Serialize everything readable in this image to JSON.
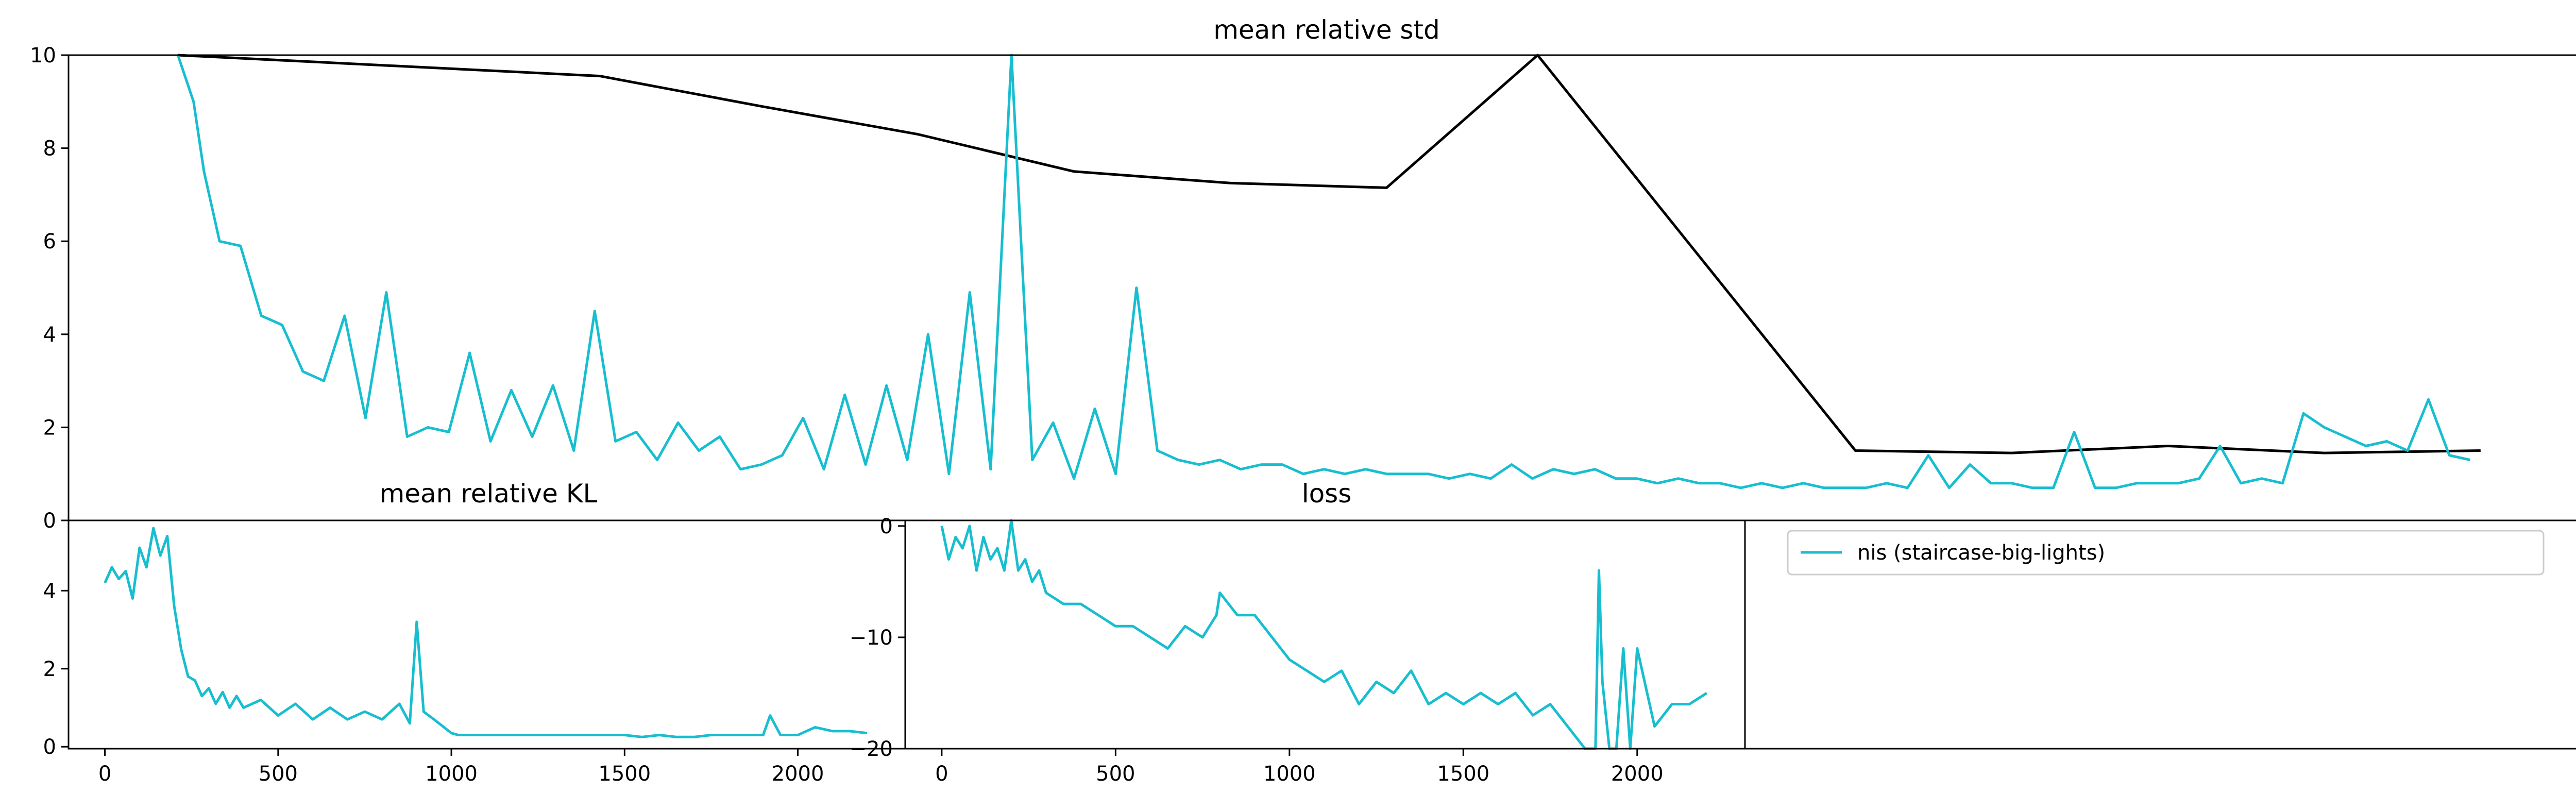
{
  "colors": {
    "nis": "#17becf",
    "reference": "#000000",
    "axes": "#000000",
    "background": "#ffffff"
  },
  "legend": {
    "placement": "bottom-right panel",
    "entries": [
      {
        "label": "nis (staircase-big-lights)",
        "color": "#17becf"
      }
    ]
  },
  "chart_data": [
    {
      "type": "line",
      "title": "mean relative std",
      "xlabel": "",
      "ylabel": "",
      "xlim": [
        -105,
        2310
      ],
      "ylim": [
        0,
        10
      ],
      "yticks": [
        0,
        2,
        4,
        6,
        8,
        10
      ],
      "ytick_labels": [
        "0",
        "2",
        "4",
        "6",
        "8",
        "10"
      ],
      "grid": false,
      "series": [
        {
          "legend_label": "nis (staircase-big-lights)",
          "color": "#17becf",
          "x": [
            0,
            15,
            25,
            40,
            60,
            80,
            100,
            120,
            140,
            160,
            180,
            200,
            220,
            240,
            260,
            280,
            300,
            320,
            340,
            360,
            380,
            400,
            420,
            440,
            460,
            480,
            500,
            520,
            540,
            560,
            580,
            600,
            620,
            640,
            660,
            680,
            700,
            720,
            740,
            760,
            780,
            800,
            820,
            840,
            860,
            880,
            900,
            920,
            940,
            960,
            980,
            1000,
            1020,
            1040,
            1060,
            1080,
            1100,
            1120,
            1140,
            1160,
            1180,
            1200,
            1220,
            1240,
            1260,
            1280,
            1300,
            1320,
            1340,
            1360,
            1380,
            1400,
            1420,
            1440,
            1460,
            1480,
            1500,
            1520,
            1540,
            1560,
            1580,
            1600,
            1620,
            1640,
            1660,
            1680,
            1700,
            1720,
            1740,
            1760,
            1780,
            1800,
            1820,
            1840,
            1860,
            1880,
            1900,
            1920,
            1940,
            1960,
            1980,
            2000,
            2020,
            2040,
            2060,
            2080,
            2100,
            2120,
            2140,
            2160,
            2180,
            2200
          ],
          "y": [
            10,
            9.0,
            7.5,
            6.0,
            5.9,
            4.4,
            4.2,
            3.2,
            3.0,
            4.4,
            2.2,
            4.9,
            1.8,
            2.0,
            1.9,
            3.6,
            1.7,
            2.8,
            1.8,
            2.9,
            1.5,
            4.5,
            1.7,
            1.9,
            1.3,
            2.1,
            1.5,
            1.8,
            1.1,
            1.2,
            1.4,
            2.2,
            1.1,
            2.7,
            1.2,
            2.9,
            1.3,
            4.0,
            1.0,
            4.9,
            1.1,
            10,
            1.3,
            2.1,
            0.9,
            2.4,
            1.0,
            5.0,
            1.5,
            1.3,
            1.2,
            1.3,
            1.1,
            1.2,
            1.2,
            1.0,
            1.1,
            1.0,
            1.1,
            1.0,
            1.0,
            1.0,
            0.9,
            1.0,
            0.9,
            1.2,
            0.9,
            1.1,
            1.0,
            1.1,
            0.9,
            0.9,
            0.8,
            0.9,
            0.8,
            0.8,
            0.7,
            0.8,
            0.7,
            0.8,
            0.7,
            0.7,
            0.7,
            0.8,
            0.7,
            1.4,
            0.7,
            1.2,
            0.8,
            0.8,
            0.7,
            0.7,
            1.9,
            0.7,
            0.7,
            0.8,
            0.8,
            0.8,
            0.9,
            1.6,
            0.8,
            0.9,
            0.8,
            2.3,
            2.0,
            1.8,
            1.6,
            1.7,
            1.5,
            2.6,
            1.4,
            1.3
          ]
        },
        {
          "color": "#000000",
          "step": true,
          "x": [
            0,
            405,
            405,
            560,
            560,
            710,
            710,
            860,
            860,
            1010,
            1010,
            1160,
            1160,
            1305,
            1305,
            1610,
            1610,
            1760,
            1760,
            1910,
            1910,
            2060,
            2060,
            2210
          ],
          "y": [
            10,
            9.55,
            9.55,
            8.9,
            8.9,
            8.3,
            8.3,
            7.5,
            7.5,
            7.25,
            7.25,
            7.15,
            7.15,
            10,
            10,
            1.5,
            1.5,
            1.45,
            1.45,
            1.6,
            1.6,
            1.45,
            1.45,
            1.5
          ]
        }
      ]
    },
    {
      "type": "line",
      "title": "mean relative KL",
      "xlabel": "",
      "ylabel": "",
      "xlim": [
        -105,
        2310
      ],
      "ylim": [
        -0.05,
        5.8
      ],
      "xticks": [
        0,
        500,
        1000,
        1500,
        2000
      ],
      "xtick_labels": [
        "0",
        "500",
        "1000",
        "1500",
        "2000"
      ],
      "yticks": [
        0,
        2,
        4
      ],
      "ytick_labels": [
        "0",
        "2",
        "4"
      ],
      "grid": false,
      "series": [
        {
          "legend_label": "nis (staircase-big-lights)",
          "color": "#17becf",
          "x": [
            0,
            20,
            40,
            60,
            80,
            100,
            120,
            140,
            160,
            180,
            200,
            220,
            240,
            260,
            280,
            300,
            320,
            340,
            360,
            380,
            400,
            450,
            500,
            550,
            600,
            650,
            700,
            750,
            800,
            850,
            880,
            900,
            920,
            950,
            1000,
            1020,
            1050,
            1100,
            1150,
            1200,
            1250,
            1300,
            1350,
            1400,
            1450,
            1500,
            1550,
            1600,
            1650,
            1700,
            1750,
            1800,
            1850,
            1900,
            1920,
            1950,
            2000,
            2050,
            2100,
            2150,
            2200
          ],
          "y": [
            4.2,
            4.6,
            4.3,
            4.5,
            3.8,
            5.1,
            4.6,
            5.6,
            4.9,
            5.4,
            3.6,
            2.5,
            1.8,
            1.7,
            1.3,
            1.5,
            1.1,
            1.4,
            1.0,
            1.3,
            1.0,
            1.2,
            0.8,
            1.1,
            0.7,
            1.0,
            0.7,
            0.9,
            0.7,
            1.1,
            0.6,
            3.2,
            0.9,
            0.7,
            0.35,
            0.3,
            0.3,
            0.3,
            0.3,
            0.3,
            0.3,
            0.3,
            0.3,
            0.3,
            0.3,
            0.3,
            0.25,
            0.3,
            0.25,
            0.25,
            0.3,
            0.3,
            0.3,
            0.3,
            0.8,
            0.3,
            0.3,
            0.5,
            0.4,
            0.4,
            0.35
          ]
        }
      ]
    },
    {
      "type": "line",
      "title": "loss",
      "xlabel": "",
      "ylabel": "",
      "xlim": [
        -105,
        2310
      ],
      "ylim": [
        -20,
        0.5
      ],
      "xticks": [
        0,
        500,
        1000,
        1500,
        2000
      ],
      "xtick_labels": [
        "0",
        "500",
        "1000",
        "1500",
        "2000"
      ],
      "yticks": [
        0,
        -10,
        -20
      ],
      "ytick_labels": [
        "0",
        "−10",
        "−20"
      ],
      "grid": false,
      "series": [
        {
          "legend_label": "nis (staircase-big-lights)",
          "color": "#17becf",
          "x": [
            0,
            20,
            40,
            60,
            80,
            100,
            120,
            140,
            160,
            180,
            200,
            220,
            240,
            260,
            280,
            300,
            350,
            400,
            450,
            500,
            550,
            600,
            650,
            700,
            750,
            790,
            800,
            850,
            900,
            950,
            1000,
            1050,
            1100,
            1150,
            1200,
            1250,
            1300,
            1350,
            1400,
            1450,
            1500,
            1550,
            1600,
            1650,
            1700,
            1750,
            1800,
            1850,
            1870,
            1880,
            1890,
            1900,
            1920,
            1940,
            1960,
            1980,
            2000,
            2050,
            2100,
            2150,
            2200
          ],
          "y": [
            0,
            -3,
            -1,
            -2,
            0,
            -4,
            -1,
            -3,
            -2,
            -4,
            0.5,
            -4,
            -3,
            -5,
            -4,
            -6,
            -7,
            -7,
            -8,
            -9,
            -9,
            -10,
            -11,
            -9,
            -10,
            -8,
            -6,
            -8,
            -8,
            -10,
            -12,
            -13,
            -14,
            -13,
            -16,
            -14,
            -15,
            -13,
            -16,
            -15,
            -16,
            -15,
            -16,
            -15,
            -17,
            -16,
            -18,
            -20,
            -20,
            -20,
            -4,
            -14,
            -20,
            -20,
            -11,
            -20,
            -11,
            -18,
            -16,
            -16,
            -15
          ]
        }
      ]
    }
  ]
}
